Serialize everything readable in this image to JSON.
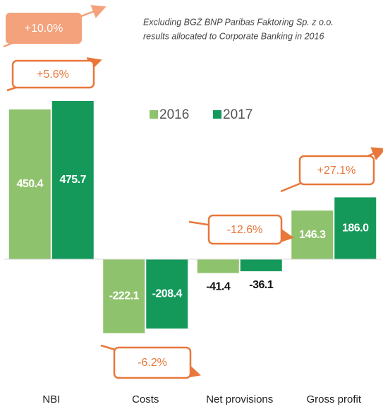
{
  "chart_data": {
    "type": "bar",
    "note": [
      "Excluding BGŻ BNP Paribas Faktoring Sp. z o.o.",
      "results allocated to Corporate Banking in 2016"
    ],
    "categories": [
      "NBI",
      "Costs",
      "Net provisions",
      "Gross profit"
    ],
    "series": [
      {
        "name": "2016",
        "color": "#8fc26c",
        "values": [
          450.4,
          -222.1,
          -41.4,
          146.3
        ],
        "value_labels": [
          "450.4",
          "-222.1",
          "-41.4",
          "146.3"
        ]
      },
      {
        "name": "2017",
        "color": "#15995b",
        "values": [
          475.7,
          -208.4,
          -36.1,
          186.0
        ],
        "value_labels": [
          "475.7",
          "-208.4",
          "-36.1",
          "186.0"
        ]
      }
    ],
    "annotations": [
      "+10.0%",
      "+5.6%",
      "-6.2%",
      "-12.6%",
      "+27.1%"
    ],
    "ylim": [
      -250,
      500
    ],
    "legend": "top"
  }
}
